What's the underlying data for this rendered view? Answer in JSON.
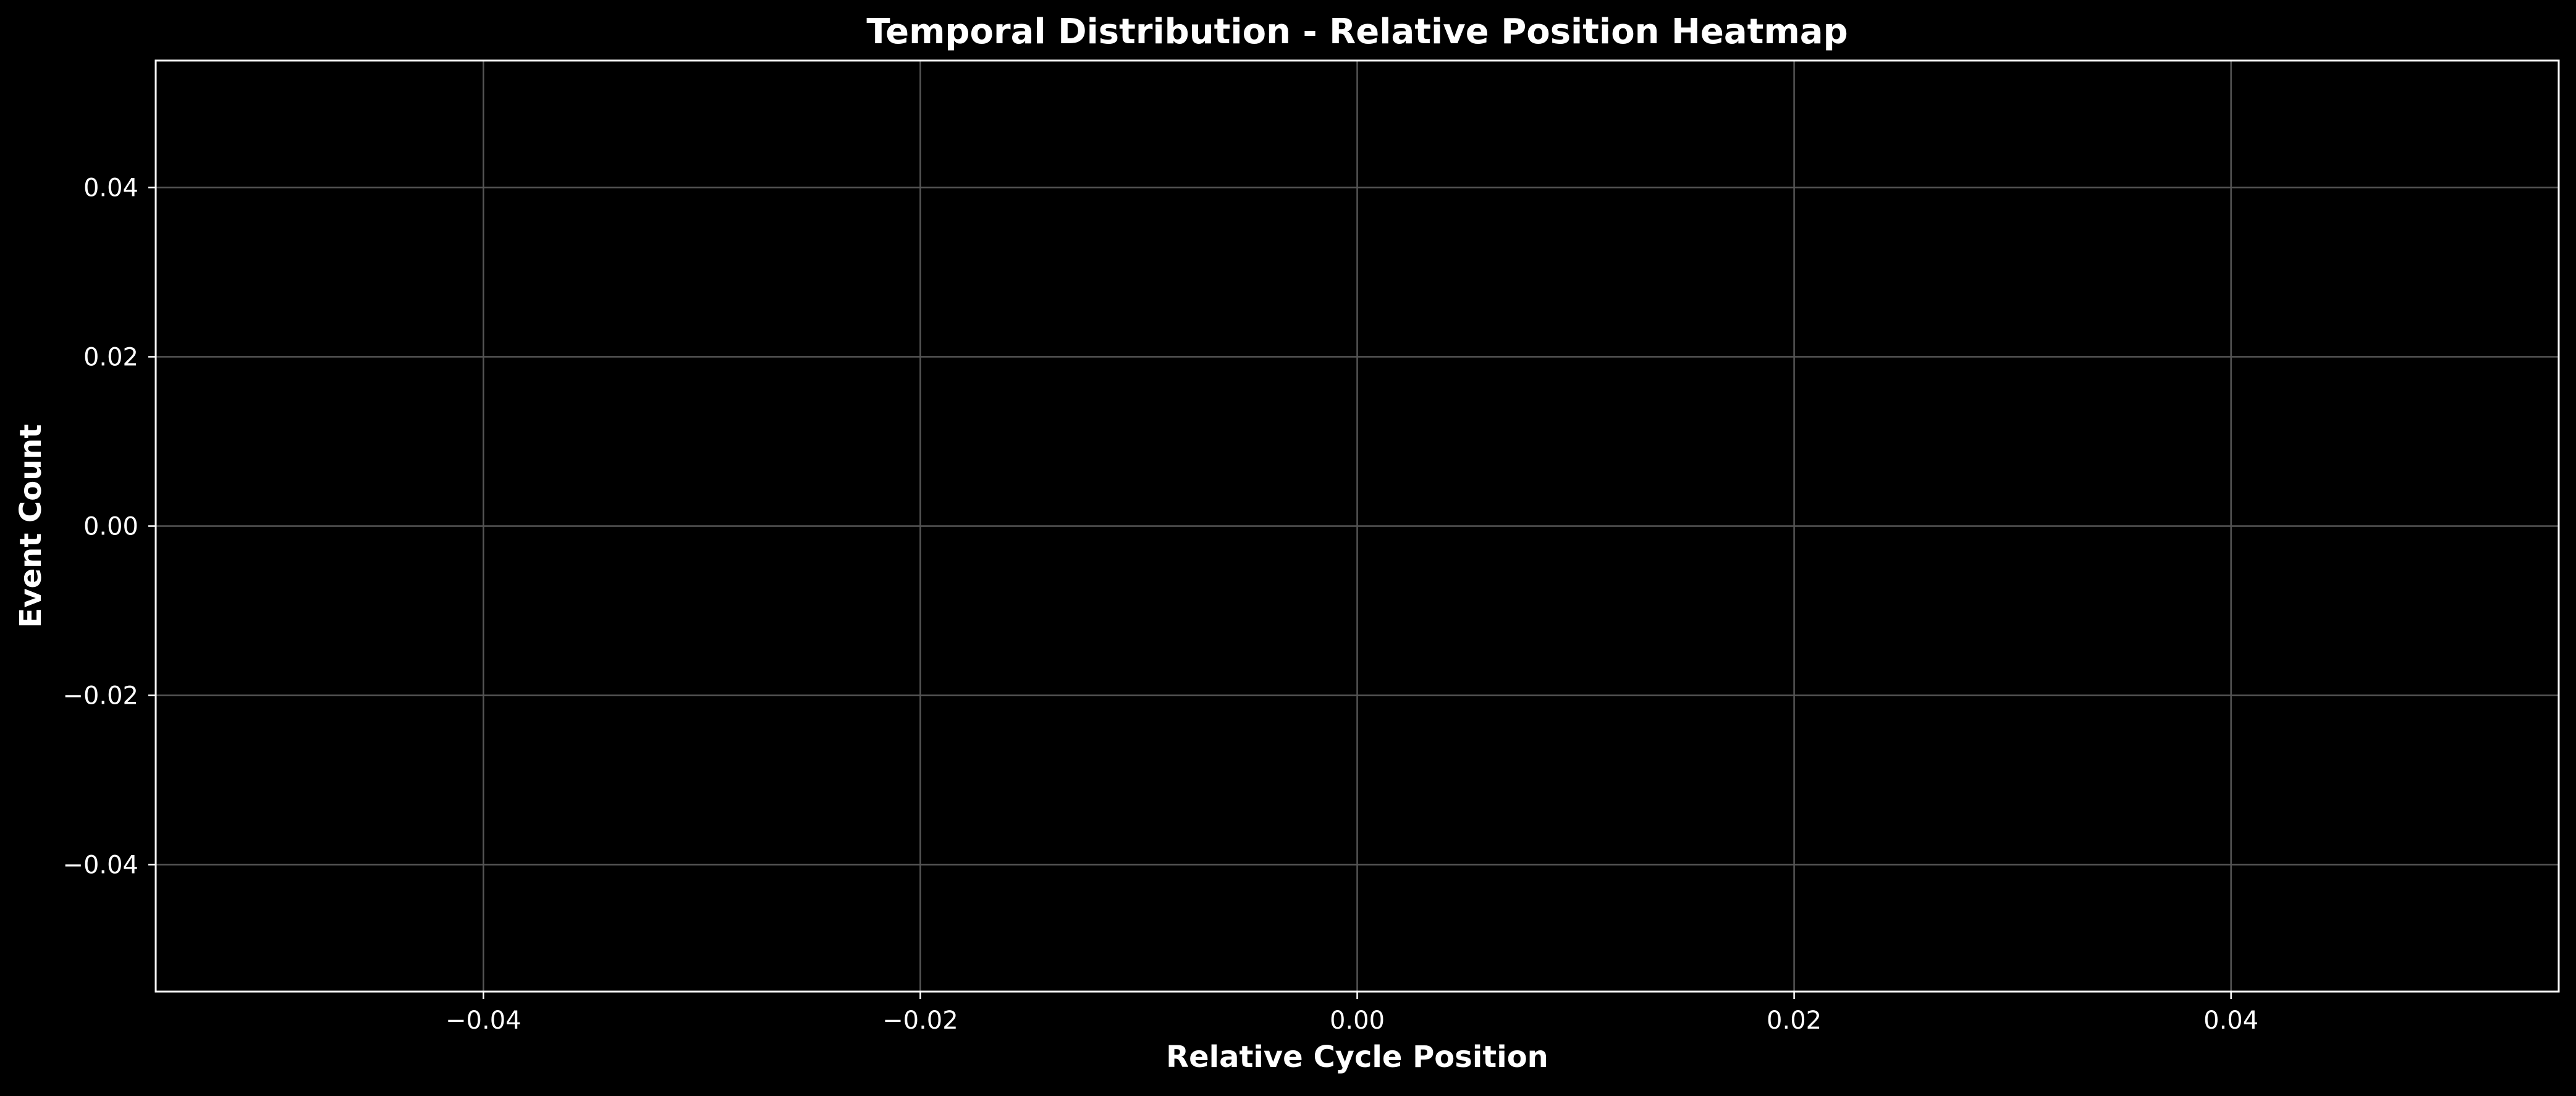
{
  "chart_data": {
    "type": "heatmap",
    "title": "Temporal Distribution - Relative Position Heatmap",
    "xlabel": "Relative Cycle Position",
    "ylabel": "Event Count",
    "xlim": [
      -0.055,
      0.055
    ],
    "ylim": [
      -0.055,
      0.055
    ],
    "x_ticks": [
      -0.04,
      -0.02,
      0.0,
      0.02,
      0.04
    ],
    "y_ticks": [
      -0.04,
      -0.02,
      0.0,
      0.02,
      0.04
    ],
    "x_tick_labels": [
      "−0.04",
      "−0.02",
      "0.00",
      "0.02",
      "0.04"
    ],
    "y_tick_labels": [
      "−0.04",
      "−0.02",
      "0.00",
      "0.02",
      "0.04"
    ],
    "grid": true,
    "legend": "none",
    "values": [],
    "colors": {
      "background": "#000000",
      "axes_face": "#000000",
      "text": "#ffffff",
      "spine": "#ffffff",
      "grid": "#555555"
    }
  }
}
